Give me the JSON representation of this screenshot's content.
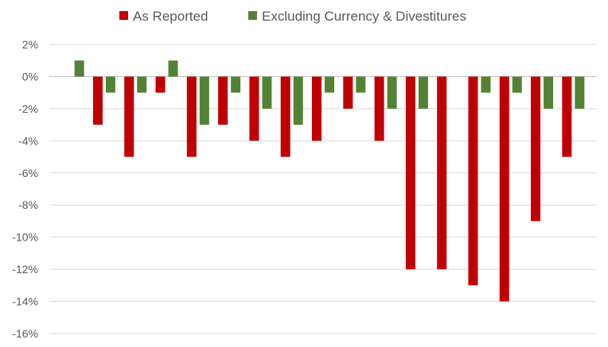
{
  "chart_data": {
    "type": "bar",
    "categories": [
      "",
      "",
      "",
      "",
      "",
      "",
      "",
      "",
      "",
      "",
      "",
      "",
      "",
      "",
      "",
      "",
      ""
    ],
    "series": [
      {
        "name": "As Reported",
        "color": "#c00000",
        "values": [
          0,
          -3,
          -5,
          -1,
          -5,
          -3,
          -4,
          -5,
          -4,
          -2,
          -4,
          -12,
          -12,
          -13,
          -14,
          -9,
          -5
        ]
      },
      {
        "name": "Excluding Currency & Divestitures",
        "color": "#548235",
        "values": [
          1,
          -1,
          -1,
          1,
          -3,
          -1,
          -2,
          -3,
          -1,
          -1,
          -2,
          -2,
          0,
          -1,
          -1,
          -2,
          -2
        ]
      }
    ],
    "ylim": [
      -16,
      2
    ],
    "yticks": [
      2,
      0,
      -2,
      -4,
      -6,
      -8,
      -10,
      -12,
      -14,
      -16
    ],
    "tick_format": "percent",
    "grid": true,
    "legend_position": "top-center",
    "title": "",
    "xlabel": "",
    "ylabel": ""
  }
}
